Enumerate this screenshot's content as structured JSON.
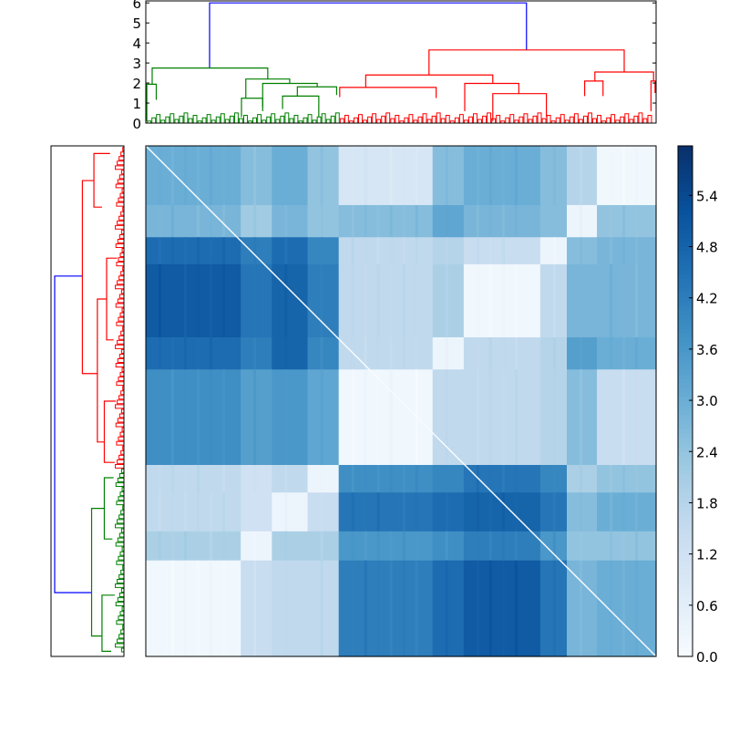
{
  "chart_data": {
    "type": "heatmap",
    "title": "",
    "description_kind": "clustered distance heatmap with dendrograms",
    "colormap": [
      "#f7fbff",
      "#deebf7",
      "#c6dbef",
      "#9ecae1",
      "#6baed6",
      "#4292c6",
      "#2171b5",
      "#08519c",
      "#08306b"
    ],
    "value_range": [
      0.0,
      5.98
    ],
    "colorbar_ticks": [
      "0.0",
      "0.6",
      "1.2",
      "1.8",
      "2.4",
      "3.0",
      "3.6",
      "4.2",
      "4.8",
      "5.4"
    ],
    "colorbar_tick_values": [
      0.0,
      0.6,
      1.2,
      1.8,
      2.4,
      3.0,
      3.6,
      4.2,
      4.8,
      5.4
    ],
    "column_blocks": [
      18.6,
      6.1,
      7.0,
      6.1,
      18.4,
      6.1,
      15.0,
      5.2,
      5.9,
      11.6
    ],
    "row_blocks": [
      11.6,
      6.3,
      5.3,
      14.3,
      6.3,
      18.7,
      5.4,
      7.6,
      5.7,
      18.8
    ],
    "block_values": [
      [
        3.0,
        2.6,
        3.0,
        2.4,
        1.0,
        2.6,
        3.0,
        2.6,
        1.8,
        0.2
      ],
      [
        2.8,
        2.2,
        2.8,
        2.4,
        2.6,
        3.2,
        2.8,
        2.6,
        0.3,
        2.4
      ],
      [
        4.6,
        4.2,
        4.6,
        4.0,
        1.6,
        1.8,
        1.4,
        0.3,
        2.6,
        2.8
      ],
      [
        5.0,
        4.4,
        4.8,
        4.2,
        1.6,
        2.0,
        0.2,
        1.6,
        2.8,
        2.8
      ],
      [
        4.6,
        4.2,
        4.8,
        4.0,
        1.6,
        0.3,
        1.6,
        1.8,
        3.4,
        3.0
      ],
      [
        3.8,
        3.4,
        3.6,
        3.2,
        0.2,
        1.6,
        1.6,
        1.8,
        2.6,
        1.4
      ],
      [
        1.6,
        1.2,
        1.6,
        0.3,
        3.8,
        4.0,
        4.4,
        4.0,
        2.0,
        2.4
      ],
      [
        1.6,
        1.2,
        0.3,
        1.4,
        4.4,
        4.6,
        4.8,
        4.4,
        2.6,
        3.0
      ],
      [
        2.0,
        0.3,
        2.0,
        2.0,
        3.6,
        3.8,
        4.2,
        3.6,
        2.4,
        2.4
      ],
      [
        0.2,
        1.4,
        1.6,
        1.6,
        4.2,
        4.6,
        5.0,
        4.4,
        2.8,
        3.0
      ]
    ],
    "top_dendrogram": {
      "ylim": [
        0,
        6.1
      ],
      "yticks": [
        "0",
        "1",
        "2",
        "3",
        "4",
        "5",
        "6"
      ],
      "ytick_values": [
        0,
        1,
        2,
        3,
        4,
        5,
        6
      ],
      "colors": {
        "root": "#0000ff",
        "cluster1": "#008000",
        "cluster2": "#ff0000"
      },
      "links": [
        [
          12.5,
          74.6,
          2.75,
          3.65,
          6.0,
          "root"
        ],
        [
          1.25,
          23.9,
          1.94,
          2.2,
          2.75,
          "cluster1"
        ],
        [
          0.2,
          2.05,
          0.1,
          1.16,
          1.94,
          "cluster1"
        ],
        [
          19.6,
          28.2,
          1.24,
          1.98,
          2.2,
          "cluster1"
        ],
        [
          18.75,
          22.9,
          0.3,
          0.6,
          1.24,
          "cluster1"
        ],
        [
          22.9,
          33.6,
          0.8,
          1.81,
          1.98,
          "cluster1"
        ],
        [
          29.7,
          37.4,
          1.35,
          1.4,
          1.81,
          "cluster1"
        ],
        [
          26.8,
          33.9,
          0.7,
          0.3,
          1.35,
          "cluster1"
        ],
        [
          55.5,
          93.75,
          2.4,
          2.55,
          3.65,
          "cluster2"
        ],
        [
          43.1,
          68.0,
          1.78,
          1.98,
          2.4,
          "cluster2"
        ],
        [
          38.0,
          56.9,
          1.3,
          1.25,
          1.78,
          "cluster2"
        ],
        [
          62.5,
          73.1,
          0.6,
          1.47,
          1.98,
          "cluster2"
        ],
        [
          68.0,
          78.5,
          0.1,
          0.3,
          1.47,
          "cluster2"
        ],
        [
          88.0,
          99.5,
          2.1,
          2.1,
          2.55,
          "cluster2"
        ],
        [
          86.0,
          89.6,
          1.35,
          1.35,
          2.1,
          "cluster2"
        ],
        [
          99.0,
          99.8,
          0.6,
          1.5,
          2.1,
          "cluster2"
        ]
      ]
    },
    "left_dendrogram": {
      "xlim": [
        0,
        6.0
      ],
      "colors": {
        "root": "#0000ff",
        "cluster1": "#ff0000",
        "cluster2": "#008000"
      },
      "links": [
        [
          25.5,
          87.5,
          3.6,
          2.8,
          6.0,
          "root"
        ],
        [
          6.8,
          44.6,
          2.6,
          2.3,
          3.6,
          "cluster1"
        ],
        [
          1.5,
          12.0,
          1.2,
          1.9,
          2.6,
          "cluster1"
        ],
        [
          30.0,
          58.0,
          1.5,
          1.7,
          2.3,
          "cluster1"
        ],
        [
          22.0,
          38.0,
          0.6,
          0.9,
          1.5,
          "cluster1"
        ],
        [
          50.0,
          62.0,
          0.7,
          0.8,
          1.7,
          "cluster1"
        ],
        [
          71.0,
          96.0,
          1.7,
          1.9,
          2.8,
          "cluster2"
        ],
        [
          65.0,
          77.0,
          0.9,
          1.0,
          1.7,
          "cluster2"
        ],
        [
          88.0,
          99.0,
          0.8,
          1.1,
          1.9,
          "cluster2"
        ]
      ]
    }
  }
}
